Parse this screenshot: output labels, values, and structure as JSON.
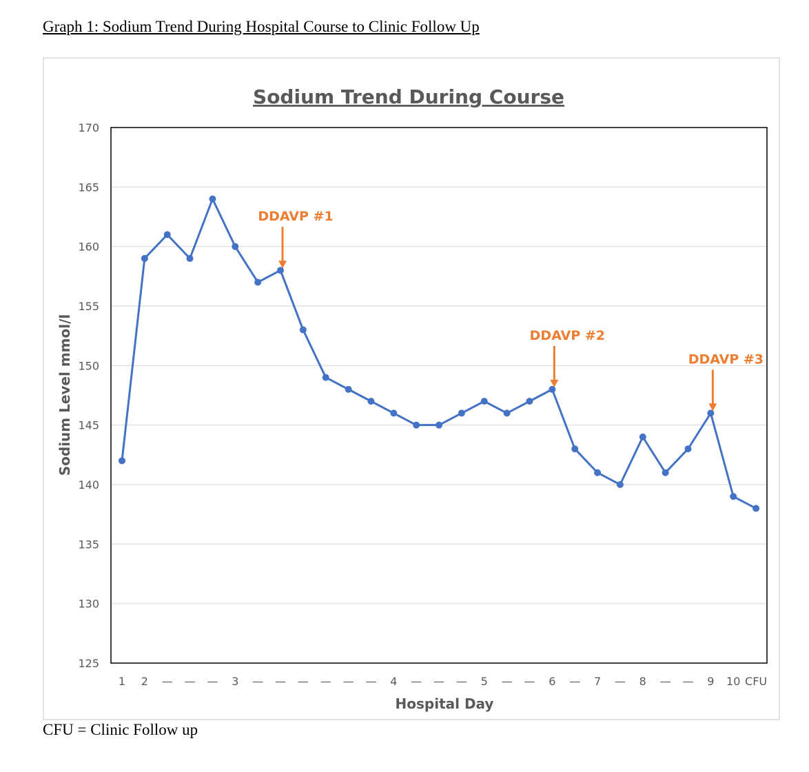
{
  "caption": "Graph 1: Sodium Trend During Hospital Course to Clinic Follow Up",
  "footnote": "CFU = Clinic Follow up",
  "chart_data": {
    "type": "line",
    "title": "Sodium Trend During Course",
    "xlabel": "Hospital Day",
    "ylabel": "Sodium Level mmol/l",
    "ylim": [
      125,
      170
    ],
    "yticks": [
      125,
      130,
      135,
      140,
      145,
      150,
      155,
      160,
      165,
      170
    ],
    "grid": true,
    "categories": [
      "1",
      "2",
      "—",
      "—",
      "—",
      "3",
      "—",
      "—",
      "—",
      "—",
      "—",
      "—",
      "4",
      "—",
      "—",
      "—",
      "5",
      "—",
      "—",
      "6",
      "—",
      "7",
      "—",
      "8",
      "—",
      "—",
      "9",
      "10",
      "CFU"
    ],
    "series": [
      {
        "name": "Sodium",
        "color": "#4472C4",
        "values": [
          142,
          159,
          161,
          159,
          164,
          160,
          157,
          158,
          153,
          149,
          148,
          147,
          146,
          145,
          145,
          146,
          147,
          146,
          147,
          148,
          143,
          141,
          140,
          144,
          141,
          143,
          146,
          139,
          138
        ]
      }
    ],
    "annotations": [
      {
        "text": "DDAVP #1",
        "index": 7,
        "color": "#ED7D31"
      },
      {
        "text": "DDAVP #2",
        "index": 19,
        "color": "#ED7D31"
      },
      {
        "text": "DDAVP #3",
        "index": 26,
        "color": "#ED7D31"
      }
    ]
  }
}
